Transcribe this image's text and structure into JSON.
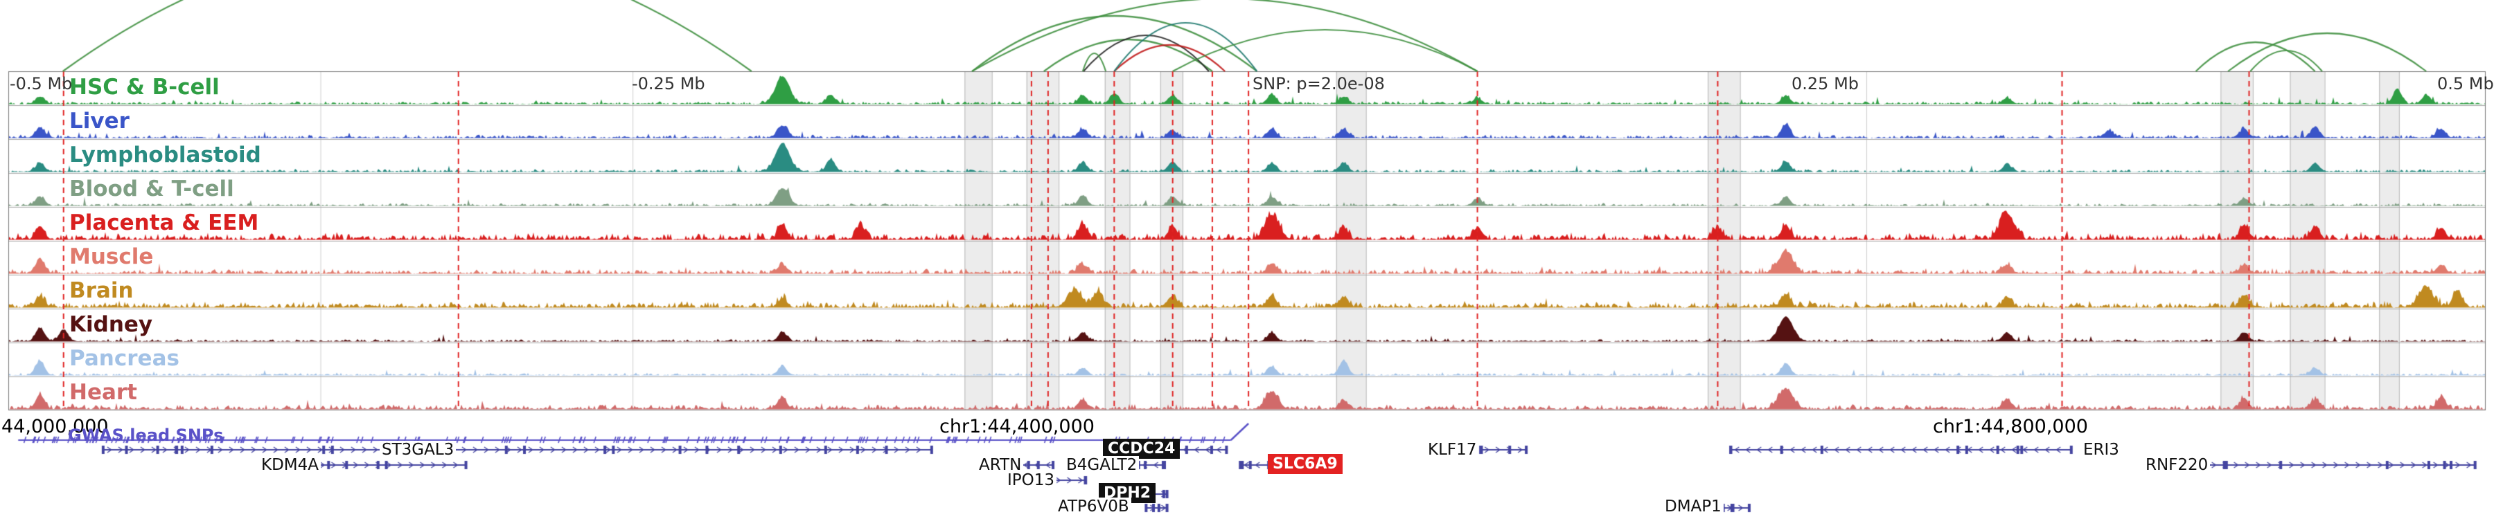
{
  "chart_data": {
    "type": "area",
    "title": "",
    "view": {
      "x_axis_unit": "Mb",
      "x_range_rel_snp": [
        -0.5,
        0.5
      ],
      "snp_x": 0.5006
    },
    "scale_labels": [
      {
        "text": "-0.5 Mb"
      },
      {
        "text": "-0.25 Mb"
      },
      {
        "text": "SNP: p=2.0e-08"
      },
      {
        "text": "0.25 Mb"
      },
      {
        "text": "0.5 Mb"
      }
    ],
    "coordinates": {
      "left": "44,000,000",
      "center": "chr1:44,400,000",
      "right": "chr1:44,800,000"
    },
    "tracks": [
      {
        "name": "HSC & B-cell",
        "color": "#2f9e44",
        "noise": 0.07,
        "peaks": [
          [
            0.0128,
            0.25
          ],
          [
            0.3125,
            0.95,
            0.004
          ],
          [
            0.332,
            0.3
          ],
          [
            0.4337,
            0.3
          ],
          [
            0.4464,
            0.35
          ],
          [
            0.47,
            0.3
          ],
          [
            0.51,
            0.32
          ],
          [
            0.539,
            0.25
          ],
          [
            0.593,
            0.2
          ],
          [
            0.7175,
            0.28
          ],
          [
            0.8068,
            0.2
          ],
          [
            0.9643,
            0.5
          ],
          [
            0.976,
            0.3
          ]
        ]
      },
      {
        "name": "Liver",
        "color": "#3a55c8",
        "noise": 0.08,
        "peaks": [
          [
            0.0128,
            0.35
          ],
          [
            0.3125,
            0.4,
            0.003
          ],
          [
            0.4337,
            0.3
          ],
          [
            0.47,
            0.25
          ],
          [
            0.51,
            0.3
          ],
          [
            0.539,
            0.3
          ],
          [
            0.7175,
            0.45
          ],
          [
            0.848,
            0.25
          ],
          [
            0.9025,
            0.3
          ],
          [
            0.9311,
            0.35
          ],
          [
            0.982,
            0.3
          ]
        ]
      },
      {
        "name": "Lymphoblastoid",
        "color": "#2a8c82",
        "noise": 0.07,
        "peaks": [
          [
            0.0128,
            0.3
          ],
          [
            0.3125,
            0.97,
            0.004
          ],
          [
            0.332,
            0.42
          ],
          [
            0.4337,
            0.3
          ],
          [
            0.47,
            0.35
          ],
          [
            0.51,
            0.3
          ],
          [
            0.539,
            0.3
          ],
          [
            0.7175,
            0.35
          ],
          [
            0.8068,
            0.25
          ],
          [
            0.9311,
            0.3
          ]
        ]
      },
      {
        "name": "Blood & T-cell",
        "color": "#7f9f84",
        "noise": 0.07,
        "peaks": [
          [
            0.0128,
            0.3
          ],
          [
            0.3125,
            0.6,
            0.0035
          ],
          [
            0.4337,
            0.35
          ],
          [
            0.47,
            0.3
          ],
          [
            0.51,
            0.3
          ],
          [
            0.593,
            0.25
          ],
          [
            0.7175,
            0.3
          ],
          [
            0.9025,
            0.25
          ]
        ]
      },
      {
        "name": "Placenta & EEM",
        "color": "#d91f1f",
        "noise": 0.17,
        "peaks": [
          [
            0.0128,
            0.45
          ],
          [
            0.3125,
            0.5
          ],
          [
            0.344,
            0.5
          ],
          [
            0.4337,
            0.5
          ],
          [
            0.47,
            0.45
          ],
          [
            0.51,
            0.85,
            0.004
          ],
          [
            0.539,
            0.4
          ],
          [
            0.593,
            0.4
          ],
          [
            0.69,
            0.4
          ],
          [
            0.7175,
            0.5
          ],
          [
            0.8068,
            0.9,
            0.004
          ],
          [
            0.9025,
            0.5
          ],
          [
            0.9311,
            0.45
          ],
          [
            0.982,
            0.4
          ]
        ]
      },
      {
        "name": "Muscle",
        "color": "#e07a6d",
        "noise": 0.12,
        "peaks": [
          [
            0.0128,
            0.5
          ],
          [
            0.3125,
            0.3
          ],
          [
            0.4337,
            0.3
          ],
          [
            0.51,
            0.35
          ],
          [
            0.7175,
            0.75,
            0.004
          ],
          [
            0.8068,
            0.3
          ],
          [
            0.9025,
            0.3
          ],
          [
            0.982,
            0.3
          ]
        ]
      },
      {
        "name": "Brain",
        "color": "#c08a20",
        "noise": 0.15,
        "peaks": [
          [
            0.0128,
            0.35
          ],
          [
            0.3125,
            0.3
          ],
          [
            0.4305,
            0.6,
            0.004
          ],
          [
            0.44,
            0.55
          ],
          [
            0.47,
            0.4
          ],
          [
            0.51,
            0.4
          ],
          [
            0.539,
            0.35
          ],
          [
            0.7175,
            0.45
          ],
          [
            0.8068,
            0.35
          ],
          [
            0.9025,
            0.4
          ],
          [
            0.9758,
            0.7,
            0.004
          ],
          [
            0.9885,
            0.6
          ]
        ]
      },
      {
        "name": "Kidney",
        "color": "#551212",
        "noise": 0.06,
        "peaks": [
          [
            0.0128,
            0.45
          ],
          [
            0.0223,
            0.4
          ],
          [
            0.3125,
            0.3
          ],
          [
            0.4337,
            0.3
          ],
          [
            0.51,
            0.3
          ],
          [
            0.7175,
            0.85,
            0.004
          ],
          [
            0.8068,
            0.3
          ],
          [
            0.9025,
            0.3
          ]
        ]
      },
      {
        "name": "Pancreas",
        "color": "#a3c2e6",
        "noise": 0.06,
        "peaks": [
          [
            0.0128,
            0.5
          ],
          [
            0.3125,
            0.3
          ],
          [
            0.4337,
            0.25
          ],
          [
            0.51,
            0.3
          ],
          [
            0.539,
            0.5
          ],
          [
            0.7175,
            0.4
          ],
          [
            0.9311,
            0.25
          ]
        ]
      },
      {
        "name": "Heart",
        "color": "#d16a6a",
        "noise": 0.12,
        "peaks": [
          [
            0.0128,
            0.5
          ],
          [
            0.3125,
            0.35
          ],
          [
            0.4337,
            0.3
          ],
          [
            0.51,
            0.6,
            0.0035
          ],
          [
            0.539,
            0.3
          ],
          [
            0.7175,
            0.7,
            0.004
          ],
          [
            0.8068,
            0.35
          ],
          [
            0.9025,
            0.35
          ],
          [
            0.9311,
            0.3
          ],
          [
            0.982,
            0.4
          ]
        ]
      }
    ],
    "arcs": [
      {
        "x1": 0.022,
        "x2": 0.3,
        "h": 180,
        "color": "#3f8f3f"
      },
      {
        "x1": 0.389,
        "x2": 0.504,
        "h": 80,
        "color": "#3f8f3f"
      },
      {
        "x1": 0.389,
        "x2": 0.593,
        "h": 105,
        "color": "#3f8f3f"
      },
      {
        "x1": 0.418,
        "x2": 0.486,
        "h": 46,
        "color": "#3f8f3f"
      },
      {
        "x1": 0.434,
        "x2": 0.4846,
        "h": 52,
        "color": "#222222"
      },
      {
        "x1": 0.4464,
        "x2": 0.4911,
        "h": 38,
        "color": "#c01818"
      },
      {
        "x1": 0.4464,
        "x2": 0.504,
        "h": 70,
        "color": "#1f7a6e"
      },
      {
        "x1": 0.47,
        "x2": 0.593,
        "h": 60,
        "color": "#3f8f3f"
      },
      {
        "x1": 0.4337,
        "x2": 0.443,
        "h": 26,
        "color": "#3f8f3f"
      },
      {
        "x1": 0.883,
        "x2": 0.9311,
        "h": 42,
        "color": "#3f8f3f"
      },
      {
        "x1": 0.896,
        "x2": 0.976,
        "h": 55,
        "color": "#3f8f3f"
      },
      {
        "x1": 0.905,
        "x2": 0.934,
        "h": 30,
        "color": "#3f8f3f"
      }
    ],
    "snp_lines": [
      0.0223,
      0.1817,
      0.413,
      0.4197,
      0.4464,
      0.47,
      0.486,
      0.5006,
      0.593,
      0.69,
      0.829,
      0.9045
    ],
    "highlight_bands": [
      {
        "x": 0.386,
        "w": 0.011
      },
      {
        "x": 0.411,
        "w": 0.013
      },
      {
        "x": 0.4426,
        "w": 0.01
      },
      {
        "x": 0.465,
        "w": 0.009
      },
      {
        "x": 0.536,
        "w": 0.012
      },
      {
        "x": 0.686,
        "w": 0.013
      },
      {
        "x": 0.893,
        "w": 0.013
      },
      {
        "x": 0.921,
        "w": 0.014
      },
      {
        "x": 0.957,
        "w": 0.008
      }
    ],
    "grid_lines": [
      0.126,
      0.252,
      0.75
    ],
    "gwas": {
      "label": "GWAS lead SNPs",
      "x_start": 0.004,
      "x_end": 0.4935,
      "snp_x": 0.5006,
      "tick_count": 170
    },
    "genes": [
      {
        "name": "ST3GAL3",
        "x1": 0.038,
        "x2": 0.373,
        "row": 0,
        "strand": "+",
        "label_style": "plain"
      },
      {
        "name": "KDM4A",
        "x1": 0.124,
        "x2": 0.185,
        "row": 1,
        "strand": "+",
        "label_style": "plain"
      },
      {
        "name": "ARTN",
        "x1": 0.408,
        "x2": 0.422,
        "row": 1,
        "strand": "-",
        "label_style": "plain"
      },
      {
        "name": "IPO13",
        "x1": 0.421,
        "x2": 0.435,
        "row": 2,
        "strand": "+",
        "label_style": "plain"
      },
      {
        "name": "CCDC24",
        "x1": 0.468,
        "x2": 0.492,
        "row": 0,
        "strand": "-",
        "label_style": "box-black"
      },
      {
        "name": "B4GALT2",
        "x1": 0.456,
        "x2": 0.467,
        "row": 1,
        "strand": "-",
        "label_style": "plain"
      },
      {
        "name": "DPH2",
        "x1": 0.459,
        "x2": 0.468,
        "row": 3,
        "strand": "+",
        "label_style": "box-black"
      },
      {
        "name": "ATP6V0B",
        "x1": 0.459,
        "x2": 0.468,
        "row": 4,
        "strand": "+",
        "label_style": "plain"
      },
      {
        "name": "SLC6A9",
        "x1": 0.497,
        "x2": 0.509,
        "row": 1,
        "strand": "-",
        "label_style": "box-red"
      },
      {
        "name": "KLF17",
        "x1": 0.594,
        "x2": 0.613,
        "row": 0,
        "strand": "+",
        "label_style": "plain"
      },
      {
        "name": "DMAP1",
        "x1": 0.692,
        "x2": 0.703,
        "row": 4,
        "strand": "+",
        "label_style": "plain"
      },
      {
        "name": "ERI3",
        "x1": 0.695,
        "x2": 0.833,
        "row": 0,
        "strand": "-",
        "label_style": "plain"
      },
      {
        "name": "RNF220",
        "x1": 0.883,
        "x2": 0.996,
        "row": 1,
        "strand": "+",
        "label_style": "plain"
      }
    ],
    "colors": {
      "snp_line": "#e02424",
      "gene": "#4444a0",
      "gwas": "#5a52c8",
      "arc_green": "#3f8f3f",
      "arc_red": "#c01818",
      "arc_black": "#222222",
      "arc_teal": "#1f7a6e",
      "gene_box_black": "#111111",
      "gene_box_red": "#e32222"
    }
  }
}
